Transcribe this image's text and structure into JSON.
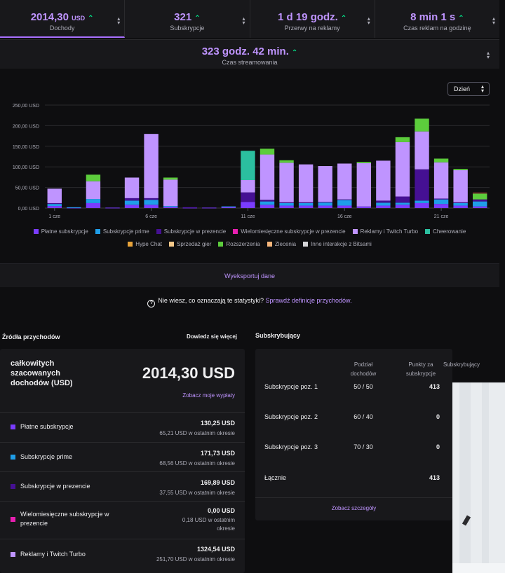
{
  "stats": [
    {
      "value": "2014,30",
      "unit": "USD",
      "label": "Dochody"
    },
    {
      "value": "321",
      "unit": "",
      "label": "Subskrypcje"
    },
    {
      "value": "1 d 19 godz.",
      "unit": "",
      "label": "Przerwy na reklamy"
    },
    {
      "value": "8 min 1 s",
      "unit": "",
      "label": "Czas reklam na godzinę"
    }
  ],
  "stream_time": {
    "value": "323 godz. 42 min.",
    "label": "Czas streamowania"
  },
  "range_select": "Dzień",
  "chart_data": {
    "type": "bar",
    "stacked": true,
    "ylim": [
      0,
      250
    ],
    "yticks": [
      "0,00 USD",
      "50,00 USD",
      "100,00 USD",
      "150,00 USD",
      "200,00 USD",
      "250,00 USD"
    ],
    "xtick_labels": [
      {
        "day": 1,
        "label": "1 cze"
      },
      {
        "day": 6,
        "label": "6 cze"
      },
      {
        "day": 11,
        "label": "11 cze"
      },
      {
        "day": 16,
        "label": "16 cze"
      },
      {
        "day": 21,
        "label": "21 cze"
      }
    ],
    "days": [
      1,
      2,
      3,
      4,
      5,
      6,
      7,
      8,
      9,
      10,
      11,
      12,
      13,
      14,
      15,
      16,
      17,
      18,
      19,
      20,
      21,
      22,
      23
    ],
    "series": [
      {
        "name": "Płatne subskrypcje",
        "color": "#7a3cff",
        "values": [
          5,
          1,
          12,
          1,
          8,
          8,
          3,
          1,
          1,
          3,
          15,
          8,
          6,
          6,
          6,
          6,
          4,
          6,
          8,
          12,
          10,
          6,
          4
        ]
      },
      {
        "name": "Subskrypcje prime",
        "color": "#1f9ee8",
        "values": [
          5,
          1,
          10,
          0,
          10,
          12,
          2,
          0,
          0,
          1,
          0,
          8,
          6,
          6,
          8,
          14,
          0,
          7,
          5,
          6,
          11,
          6,
          12
        ]
      },
      {
        "name": "Subskrypcje w prezencie",
        "color": "#451093",
        "values": [
          2,
          0,
          0,
          0,
          6,
          4,
          0,
          1,
          0,
          0,
          23,
          4,
          2,
          2,
          1,
          1,
          0,
          5,
          15,
          76,
          2,
          2,
          5
        ]
      },
      {
        "name": "Wielomiesięczne subskrypcje w prezencie",
        "color": "#e81fb1",
        "values": [
          0,
          0,
          0,
          0,
          0,
          0,
          0,
          0,
          0,
          0,
          0,
          0,
          0,
          0,
          0,
          0,
          0,
          0,
          0,
          0,
          0,
          0,
          0
        ]
      },
      {
        "name": "Reklamy i Twitch Turbo",
        "color": "#bf94ff",
        "values": [
          35,
          0,
          43,
          0,
          50,
          156,
          64,
          0,
          0,
          0,
          30,
          110,
          96,
          92,
          87,
          87,
          105,
          97,
          132,
          92,
          88,
          78,
          0
        ]
      },
      {
        "name": "Cheerowanie",
        "color": "#2bbf9f",
        "values": [
          0,
          0,
          0,
          0,
          0,
          0,
          0,
          0,
          0,
          0,
          71,
          0,
          0,
          0,
          0,
          0,
          0,
          0,
          0,
          0,
          0,
          0,
          0
        ]
      },
      {
        "name": "Hype Chat",
        "color": "#e8a33a",
        "values": [
          0,
          0,
          0,
          0,
          0,
          0,
          0,
          0,
          0,
          0,
          0,
          0,
          0,
          0,
          0,
          0,
          0,
          0,
          0,
          0,
          0,
          0,
          0
        ]
      },
      {
        "name": "Sprzedaż gier",
        "color": "#f5c98a",
        "values": [
          0,
          0,
          0,
          0,
          0,
          0,
          0,
          0,
          0,
          0,
          0,
          0,
          0,
          0,
          0,
          0,
          0,
          0,
          0,
          0,
          0,
          0,
          0
        ]
      },
      {
        "name": "Rozszerzenia",
        "color": "#5ccc3c",
        "values": [
          0,
          0,
          16,
          0,
          0,
          0,
          5,
          0,
          0,
          0,
          0,
          14,
          6,
          0,
          0,
          0,
          3,
          0,
          12,
          31,
          9,
          3,
          14
        ]
      },
      {
        "name": "Zlecenia",
        "color": "#f5b57a",
        "values": [
          0,
          0,
          0,
          0,
          0,
          0,
          0,
          0,
          0,
          0,
          0,
          0,
          0,
          0,
          0,
          0,
          0,
          0,
          0,
          0,
          0,
          0,
          0
        ]
      },
      {
        "name": "Inne interakcje z Bitsami",
        "color": "#d5d5d8",
        "values": [
          0,
          0,
          0,
          0,
          0,
          0,
          0,
          0,
          0,
          0,
          0,
          0,
          0,
          0,
          0,
          0,
          0,
          0,
          0,
          0,
          0,
          0,
          0
        ]
      }
    ],
    "other_small": {
      "color": "#6e2a2a",
      "values": [
        0,
        0,
        0,
        0,
        0,
        0,
        0,
        0,
        0,
        0,
        0,
        0,
        0,
        0,
        0,
        0,
        0,
        0,
        0,
        0,
        0,
        0,
        3
      ]
    }
  },
  "export_label": "Wyeksportuj dane",
  "help": {
    "question": "Nie wiesz, co oznaczają te statystyki?",
    "link": "Sprawdź definicje przychodów."
  },
  "revenue": {
    "title": "Źródła przychodów",
    "more": "Dowiedz się więcej",
    "total_label": "całkowitych szacowanych dochodów (USD)",
    "total_value": "2014,30 USD",
    "payouts_link": "Zobacz moje wypłaty",
    "rows": [
      {
        "name": "Płatne subskrypcje",
        "color": "#7a3cff",
        "amount": "130,25 USD",
        "recent": "65,21 USD w ostatnim okresie"
      },
      {
        "name": "Subskrypcje prime",
        "color": "#1f9ee8",
        "amount": "171,73 USD",
        "recent": "68,56 USD w ostatnim okresie"
      },
      {
        "name": "Subskrypcje w prezencie",
        "color": "#451093",
        "amount": "169,89 USD",
        "recent": "37,55 USD w ostatnim okresie"
      },
      {
        "name": "Wielomiesięczne subskrypcje w prezencie",
        "color": "#e81fb1",
        "amount": "0,00 USD",
        "recent": "0,18 USD w ostatnim okresie"
      },
      {
        "name": "Reklamy i Twitch Turbo",
        "color": "#bf94ff",
        "amount": "1324,54 USD",
        "recent": "251,70 USD w ostatnim okresie"
      }
    ]
  },
  "subscribers": {
    "title": "Subskrybujący",
    "headers": {
      "split": "Podział dochodów",
      "points": "Punkty za subskrypcje",
      "subs": "Subskrybujący"
    },
    "rows": [
      {
        "tier": "Subskrypcje poz. 1",
        "split": "50 / 50",
        "points": "413"
      },
      {
        "tier": "Subskrypcje poz. 2",
        "split": "60 / 40",
        "points": "0"
      },
      {
        "tier": "Subskrypcje poz. 3",
        "split": "70 / 30",
        "points": "0"
      },
      {
        "tier": "Łącznie",
        "split": "",
        "points": "413"
      }
    ],
    "details_link": "Zobacz szczegóły"
  }
}
